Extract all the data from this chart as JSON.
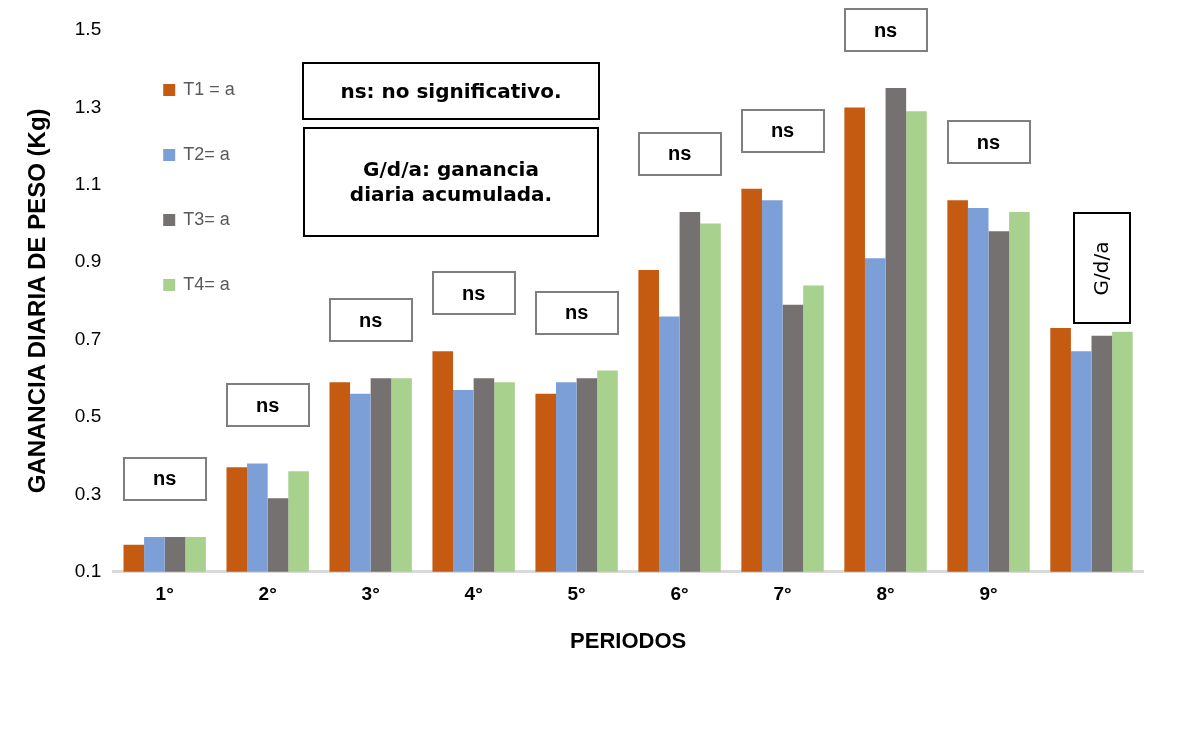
{
  "chart_data": {
    "type": "bar",
    "xlabel": "PERIODOS",
    "ylabel": "GANANCIA DIARIA DE PESO (Kg)",
    "categories": [
      "1°",
      "2°",
      "3°",
      "4°",
      "5°",
      "6°",
      "7°",
      "8°",
      "9°",
      null
    ],
    "series": [
      {
        "name": "T1 = a",
        "color": "#c55a11",
        "values": [
          0.17,
          0.37,
          0.59,
          0.67,
          0.56,
          0.88,
          1.09,
          1.3,
          1.06,
          0.73
        ]
      },
      {
        "name": "T2= a",
        "color": "#7c9fd7",
        "values": [
          0.19,
          0.38,
          0.56,
          0.57,
          0.59,
          0.76,
          1.06,
          0.91,
          1.04,
          0.67
        ]
      },
      {
        "name": "T3= a",
        "color": "#767171",
        "values": [
          0.19,
          0.29,
          0.6,
          0.6,
          0.6,
          1.03,
          0.79,
          1.35,
          0.98,
          0.71
        ]
      },
      {
        "name": "T4= a",
        "color": "#a9d18e",
        "values": [
          0.19,
          0.36,
          0.6,
          0.59,
          0.62,
          1.0,
          0.84,
          1.29,
          1.03,
          0.72
        ]
      }
    ],
    "ylim": [
      0.1,
      1.5
    ],
    "yticks": [
      0.1,
      0.3,
      0.5,
      0.7,
      0.9,
      1.1,
      1.3,
      1.5
    ],
    "grid": false,
    "legend": "top left",
    "annotations": [
      "ns: no significativo.",
      "G/d/a: ganancia diaria acumulada.",
      "G/d/a",
      "ns",
      "ns",
      "ns",
      "ns",
      "ns",
      "ns",
      "ns",
      "ns",
      "ns"
    ]
  }
}
